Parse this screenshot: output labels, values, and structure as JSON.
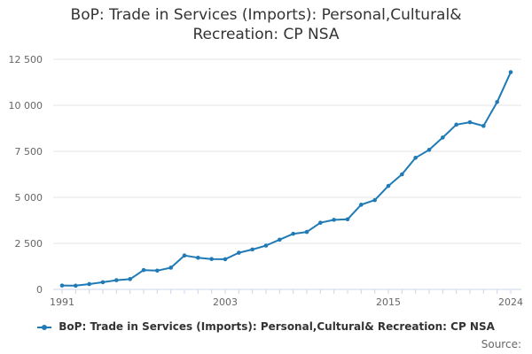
{
  "title_line1": "BoP: Trade in Services (Imports): Personal,Cultural&",
  "title_line2": "Recreation: CP NSA",
  "legend_label": "BoP: Trade in Services (Imports): Personal,Cultural& Recreation: CP NSA",
  "source_label": "Source:",
  "colors": {
    "series": "#1f7ab5",
    "grid": "#e6e6e6",
    "axis": "#ccd6eb",
    "text": "#666666"
  },
  "chart_data": {
    "type": "line",
    "title": "BoP: Trade in Services (Imports): Personal,Cultural& Recreation: CP NSA",
    "xlabel": "",
    "ylabel": "",
    "xlim": [
      1991,
      2024
    ],
    "ylim": [
      0,
      12500
    ],
    "x_ticks": [
      "1991",
      "2003",
      "2015",
      "2024"
    ],
    "y_ticks": [
      "0",
      "2 500",
      "5 000",
      "7 500",
      "10 000",
      "12 500"
    ],
    "y_tick_values": [
      0,
      2500,
      5000,
      7500,
      10000,
      12500
    ],
    "x": [
      1991,
      1992,
      1993,
      1994,
      1995,
      1996,
      1997,
      1998,
      1999,
      2000,
      2001,
      2002,
      2003,
      2004,
      2005,
      2006,
      2007,
      2008,
      2009,
      2010,
      2011,
      2012,
      2013,
      2014,
      2015,
      2016,
      2017,
      2018,
      2019,
      2020,
      2021,
      2022,
      2023,
      2024
    ],
    "series": [
      {
        "name": "BoP: Trade in Services (Imports): Personal,Cultural& Recreation: CP NSA",
        "values": [
          210,
          200,
          290,
          390,
          500,
          560,
          1050,
          1020,
          1180,
          1840,
          1720,
          1650,
          1640,
          1990,
          2170,
          2380,
          2700,
          3020,
          3120,
          3620,
          3780,
          3810,
          4600,
          4850,
          5620,
          6250,
          7150,
          7580,
          8250,
          8950,
          9080,
          8880,
          10180,
          11800
        ]
      }
    ],
    "grid": true,
    "legend_position": "bottom"
  }
}
